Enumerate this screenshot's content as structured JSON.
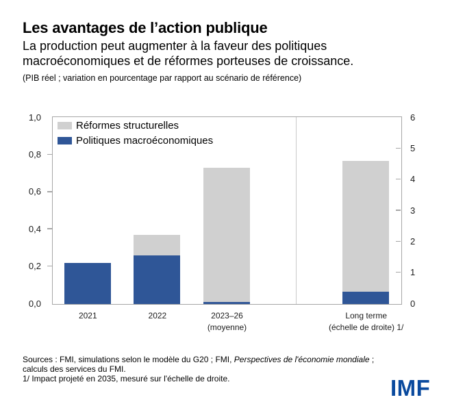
{
  "header": {
    "title": "Les avantages de l’action publique",
    "subtitle": "La production peut augmenter à la faveur des politiques macroéconomiques et de réformes porteuses de croissance.",
    "unit_note": "(PIB réel ; variation en pourcentage par rapport au scénario de référence)"
  },
  "chart_data": {
    "type": "bar",
    "stacked": true,
    "title": "Les avantages de l’action publique",
    "categories": [
      {
        "label": "2021",
        "sublabel": "",
        "scale": "left",
        "slot": 0
      },
      {
        "label": "2022",
        "sublabel": "",
        "scale": "left",
        "slot": 1
      },
      {
        "label": "2023–26",
        "sublabel": "(moyenne)",
        "scale": "left",
        "slot": 2
      },
      {
        "label": "Long terme",
        "sublabel": "(échelle de droite) 1/",
        "scale": "right",
        "slot": 4
      }
    ],
    "series": [
      {
        "key": "macro",
        "name": "Politiques macroéconomiques",
        "color": "#2f5697",
        "values": [
          0.22,
          0.26,
          0.01,
          0.4
        ]
      },
      {
        "key": "structural",
        "name": "Réformes structurelles",
        "color": "#d0d0d0",
        "values": [
          0.0,
          0.11,
          0.72,
          4.2
        ]
      }
    ],
    "left_axis": {
      "min": 0,
      "max": 1.0,
      "ticks": [
        "0,0",
        "0,2",
        "0,4",
        "0,6",
        "0,8",
        "1,0"
      ]
    },
    "right_axis": {
      "min": 0,
      "max": 6,
      "ticks": [
        "0",
        "1",
        "2",
        "3",
        "4",
        "5",
        "6"
      ]
    },
    "legend_position": "top-left",
    "divider_between_slots": 3.5,
    "grid": false
  },
  "legend": [
    {
      "label": "Réformes structurelles",
      "color": "#d0d0d0"
    },
    {
      "label": "Politiques macroéconomiques",
      "color": "#2f5697"
    }
  ],
  "footer": {
    "sources_prefix": "Sources : FMI, simulations selon le modèle du G20 ; FMI, ",
    "sources_italic": "Perspectives de l'économie mondiale",
    "sources_suffix": " ;",
    "sources_line2": "calculs des services du FMI.",
    "note": "1/ Impact projeté en 2035, mesuré sur l'échelle de droite.",
    "logo": "IMF"
  },
  "colors": {
    "bar_blue": "#2f5697",
    "bar_gray": "#d0d0d0",
    "axis_border": "#a6a6a6",
    "divider": "#c9c9c9",
    "logo_blue": "#0a4a9e"
  }
}
